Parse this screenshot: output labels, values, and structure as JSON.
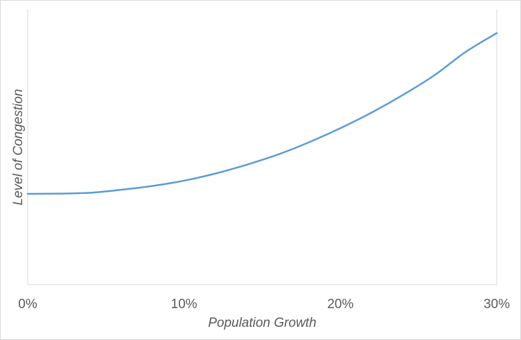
{
  "chart_data": {
    "type": "line",
    "title": "",
    "xlabel": "Population Growth",
    "ylabel": "Level of Congestion",
    "x_ticks": [
      "0%",
      "10%",
      "20%",
      "30%"
    ],
    "x_tick_values": [
      0,
      10,
      20,
      30
    ],
    "xlim": [
      0,
      30
    ],
    "ylim": [
      0,
      100
    ],
    "grid": false,
    "legend": "none",
    "series": [
      {
        "color": "#5b9bd5",
        "x": [
          0,
          2,
          4,
          6,
          8,
          10,
          12,
          14,
          16,
          18,
          20,
          22,
          24,
          26,
          28,
          30
        ],
        "y": [
          33,
          33.1,
          33.4,
          34.5,
          35.9,
          37.8,
          40.4,
          43.6,
          47.3,
          51.8,
          56.9,
          62.6,
          69.0,
          76.1,
          84.6,
          91.5
        ]
      }
    ]
  }
}
